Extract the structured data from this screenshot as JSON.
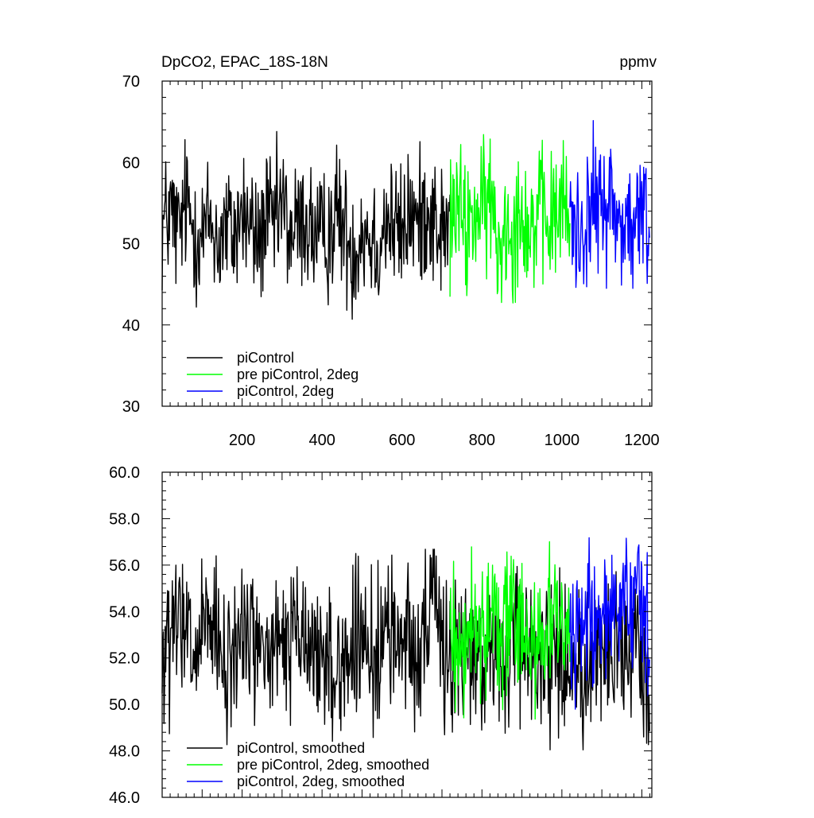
{
  "chart_data": [
    {
      "type": "line",
      "title": "DpCO2, EPAC_18S-18N",
      "title_right": "ppmv",
      "xlabel": "",
      "ylabel": "",
      "xlim": [
        0,
        1225
      ],
      "ylim": [
        30,
        70
      ],
      "x_ticks": [
        200,
        400,
        600,
        800,
        1000,
        1200
      ],
      "x_tick_labels": [
        "200",
        "400",
        "600",
        "800",
        "1000",
        "1200"
      ],
      "y_ticks": [
        30,
        40,
        50,
        60,
        70
      ],
      "y_tick_labels": [
        "30",
        "40",
        "50",
        "60",
        "70"
      ],
      "grid": false,
      "legend_position": "bottom-left",
      "series": [
        {
          "name": "piControl",
          "color": "#000000",
          "x_start": 0,
          "x_end": 720,
          "x": [
            0,
            20,
            40,
            60,
            80,
            100,
            120,
            140,
            160,
            180,
            200,
            220,
            240,
            260,
            280,
            300,
            320,
            340,
            360,
            380,
            400,
            420,
            440,
            460,
            480,
            500,
            520,
            540,
            560,
            580,
            600,
            620,
            640,
            660,
            680,
            700,
            720
          ],
          "values": [
            52,
            54,
            51,
            55,
            52,
            51,
            53,
            50,
            52,
            51,
            54,
            52,
            50,
            53,
            52,
            55,
            51,
            52,
            53,
            51,
            50,
            52,
            54,
            51,
            49,
            52,
            51,
            50,
            53,
            52,
            51,
            54,
            52,
            55,
            53,
            51,
            52
          ]
        },
        {
          "name": "pre piControl, 2deg",
          "color": "#00ff00",
          "x_start": 720,
          "x_end": 1020,
          "x": [
            720,
            740,
            760,
            780,
            800,
            820,
            840,
            860,
            880,
            900,
            920,
            940,
            960,
            980,
            1000,
            1020
          ],
          "values": [
            52,
            55,
            51,
            54,
            53,
            56,
            49,
            53,
            52,
            55,
            51,
            54,
            52,
            53,
            55,
            52
          ]
        },
        {
          "name": "piControl, 2deg",
          "color": "#0000ff",
          "x_start": 1020,
          "x_end": 1220,
          "x": [
            1020,
            1040,
            1060,
            1080,
            1100,
            1120,
            1140,
            1160,
            1180,
            1200,
            1220
          ],
          "values": [
            54,
            51,
            53,
            55,
            54,
            56,
            52,
            53,
            51,
            54,
            52
          ]
        }
      ]
    },
    {
      "type": "line",
      "title": "",
      "xlabel": "",
      "ylabel": "",
      "xlim": [
        0,
        1225
      ],
      "ylim": [
        46,
        60
      ],
      "y_ticks": [
        46,
        48,
        50,
        52,
        54,
        56,
        58,
        60
      ],
      "y_tick_labels": [
        "46.0",
        "48.0",
        "50.0",
        "52.0",
        "54.0",
        "56.0",
        "58.0",
        "60.0"
      ],
      "grid": false,
      "legend_position": "bottom-left",
      "series": [
        {
          "name": "piControl, smoothed",
          "color": "#000000",
          "x_start": 0,
          "x_end": 1220,
          "x": [
            0,
            40,
            80,
            120,
            160,
            200,
            240,
            280,
            320,
            360,
            400,
            440,
            480,
            520,
            560,
            600,
            640,
            680,
            720,
            760,
            800,
            840,
            880,
            920,
            960,
            1000,
            1040,
            1080,
            1120,
            1160,
            1200,
            1220
          ],
          "values": [
            51.5,
            53.5,
            52.0,
            53.5,
            51.0,
            53.5,
            52.5,
            52.0,
            53.0,
            52.5,
            52.0,
            51.5,
            52.5,
            52.0,
            53.0,
            53.0,
            52.5,
            54.0,
            52.0,
            52.0,
            52.5,
            51.5,
            52.5,
            52.0,
            52.5,
            52.0,
            51.5,
            52.0,
            52.5,
            52.0,
            51.5,
            52.0
          ]
        },
        {
          "name": "pre piControl, 2deg, smoothed",
          "color": "#00ff00",
          "x_start": 720,
          "x_end": 1020,
          "x": [
            720,
            760,
            800,
            840,
            880,
            920,
            960,
            1000,
            1020
          ],
          "values": [
            53.5,
            52.5,
            54.0,
            53.0,
            53.5,
            52.5,
            54.0,
            53.0,
            53.5
          ]
        },
        {
          "name": "piControl, 2deg, smoothed",
          "color": "#0000ff",
          "x_start": 1020,
          "x_end": 1220,
          "x": [
            1020,
            1060,
            1100,
            1140,
            1180,
            1220
          ],
          "values": [
            53.0,
            53.5,
            54.0,
            53.5,
            54.0,
            53.0
          ]
        }
      ]
    }
  ]
}
